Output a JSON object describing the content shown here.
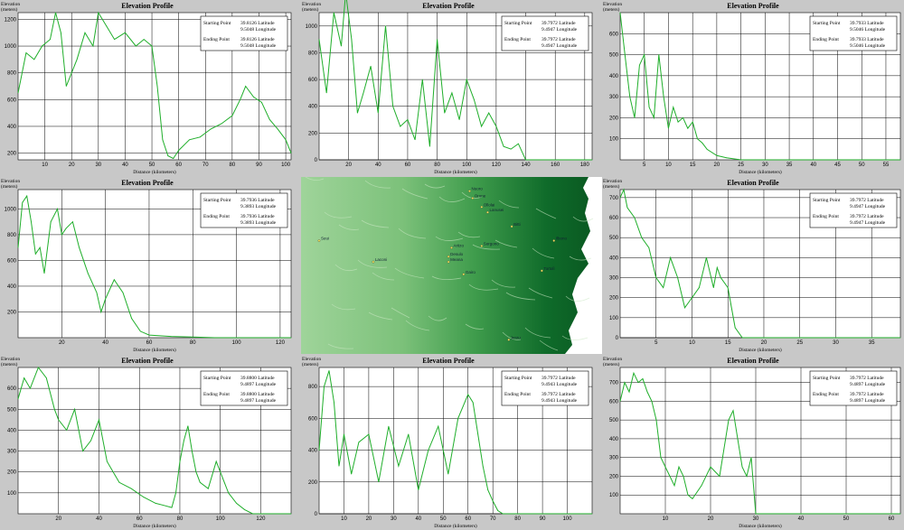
{
  "panel_title": "Elevation Profile",
  "ylabel_top": "Elevation",
  "ylabel_unit": "(meters)",
  "xlabel": "Distance (kilometers)",
  "line_color": "#1fae2a",
  "info_labels": {
    "start": "Starting Point",
    "end": "Ending Point",
    "lat": "Latitude",
    "lon": "Longitude"
  },
  "map": {
    "towns": [
      {
        "name": "Nuoro",
        "fx": 0.56,
        "fy": 0.08
      },
      {
        "name": "Ollolai",
        "fx": 0.6,
        "fy": 0.17
      },
      {
        "name": "Orune",
        "fx": 0.57,
        "fy": 0.12
      },
      {
        "name": "Lanusei",
        "fx": 0.62,
        "fy": 0.2
      },
      {
        "name": "Bitti",
        "fx": 0.7,
        "fy": 0.28
      },
      {
        "name": "Sorgono",
        "fx": 0.6,
        "fy": 0.39
      },
      {
        "name": "Ilbono",
        "fx": 0.84,
        "fy": 0.36
      },
      {
        "name": "Aritzo",
        "fx": 0.5,
        "fy": 0.4
      },
      {
        "name": "Desulo",
        "fx": 0.49,
        "fy": 0.45
      },
      {
        "name": "Seui",
        "fx": 0.06,
        "fy": 0.36
      },
      {
        "name": "Meana",
        "fx": 0.49,
        "fy": 0.48
      },
      {
        "name": "Laconi",
        "fx": 0.24,
        "fy": 0.48
      },
      {
        "name": "Gairo",
        "fx": 0.54,
        "fy": 0.55
      },
      {
        "name": "Tortolì",
        "fx": 0.8,
        "fy": 0.53
      },
      {
        "name": "Jerzu",
        "fx": 0.69,
        "fy": 0.92
      }
    ]
  },
  "chart_data": [
    {
      "type": "line",
      "title": "Elevation Profile",
      "xlabel": "Distance (kilometers)",
      "ylabel": "Elevation (meters)",
      "xlim": [
        0,
        102
      ],
      "ylim": [
        150,
        1250
      ],
      "xticks": [
        10,
        20,
        30,
        40,
        50,
        60,
        70,
        80,
        90,
        100
      ],
      "yticks": [
        200,
        400,
        600,
        800,
        1000,
        1200
      ],
      "start": {
        "lat": "39.8126",
        "lon": "9.5048"
      },
      "end": {
        "lat": "39.8126",
        "lon": "9.5048"
      },
      "x": [
        0,
        3,
        6,
        9,
        12,
        14,
        16,
        18,
        22,
        25,
        28,
        30,
        33,
        36,
        40,
        44,
        47,
        50,
        52,
        54,
        56,
        58,
        60,
        64,
        68,
        72,
        76,
        80,
        83,
        85,
        88,
        91,
        94,
        97,
        100,
        102
      ],
      "y": [
        650,
        950,
        900,
        1000,
        1050,
        1250,
        1100,
        700,
        900,
        1100,
        1000,
        1250,
        1150,
        1050,
        1100,
        1000,
        1050,
        1000,
        700,
        300,
        180,
        160,
        220,
        300,
        320,
        380,
        420,
        480,
        600,
        700,
        620,
        580,
        450,
        380,
        300,
        200
      ]
    },
    {
      "type": "line",
      "title": "Elevation Profile",
      "xlabel": "Distance (kilometers)",
      "ylabel": "Elevation (meters)",
      "xlim": [
        0,
        185
      ],
      "ylim": [
        0,
        1100
      ],
      "xticks": [
        20,
        40,
        60,
        80,
        100,
        120,
        140,
        160,
        180
      ],
      "yticks": [
        0,
        200,
        400,
        600,
        800,
        1000
      ],
      "start": {
        "lat": "39.7972",
        "lon": "9.4947"
      },
      "end": {
        "lat": "39.7972",
        "lon": "9.4947"
      },
      "x": [
        0,
        5,
        10,
        15,
        18,
        22,
        26,
        30,
        35,
        40,
        45,
        50,
        55,
        60,
        65,
        70,
        75,
        80,
        85,
        90,
        95,
        100,
        105,
        110,
        115,
        120,
        125,
        130,
        135,
        140,
        185
      ],
      "y": [
        900,
        500,
        1100,
        850,
        1250,
        900,
        350,
        500,
        700,
        350,
        1000,
        400,
        250,
        300,
        150,
        600,
        100,
        900,
        350,
        500,
        300,
        600,
        450,
        250,
        350,
        250,
        100,
        80,
        120,
        0,
        0
      ]
    },
    {
      "type": "line",
      "title": "Elevation Profile",
      "xlabel": "Distance (kilometers)",
      "ylabel": "Elevation (meters)",
      "xlim": [
        0,
        58
      ],
      "ylim": [
        0,
        700
      ],
      "xticks": [
        5,
        10,
        15,
        20,
        25,
        30,
        35,
        40,
        45,
        50,
        55
      ],
      "yticks": [
        100,
        200,
        300,
        400,
        500,
        600
      ],
      "start": {
        "lat": "39.7933",
        "lon": "9.5046"
      },
      "end": {
        "lat": "39.7933",
        "lon": "9.5046"
      },
      "x": [
        0,
        1,
        2,
        3,
        4,
        5,
        6,
        7,
        8,
        9,
        10,
        11,
        12,
        13,
        14,
        15,
        16,
        17,
        18,
        20,
        22,
        25,
        58
      ],
      "y": [
        700,
        500,
        300,
        200,
        450,
        500,
        250,
        200,
        500,
        300,
        150,
        250,
        180,
        200,
        150,
        180,
        100,
        80,
        50,
        20,
        10,
        0,
        0
      ]
    },
    {
      "type": "line",
      "title": "Elevation Profile",
      "xlabel": "Distance (kilometers)",
      "ylabel": "Elevation (meters)",
      "xlim": [
        0,
        125
      ],
      "ylim": [
        0,
        1150
      ],
      "xticks": [
        20,
        40,
        60,
        80,
        100,
        120
      ],
      "yticks": [
        200,
        400,
        600,
        800,
        1000
      ],
      "start": {
        "lat": "39.7936",
        "lon": "9.3893"
      },
      "end": {
        "lat": "39.7936",
        "lon": "9.3893"
      },
      "x": [
        0,
        2,
        4,
        6,
        8,
        10,
        12,
        15,
        18,
        20,
        22,
        25,
        28,
        32,
        36,
        38,
        40,
        44,
        48,
        52,
        56,
        60,
        70,
        80,
        90,
        125
      ],
      "y": [
        700,
        1050,
        1100,
        900,
        650,
        700,
        500,
        900,
        1000,
        800,
        850,
        900,
        700,
        500,
        350,
        200,
        300,
        450,
        350,
        150,
        50,
        20,
        10,
        5,
        0,
        0
      ]
    },
    {
      "type": "line",
      "title": "Elevation Profile",
      "xlabel": "Distance (kilometers)",
      "ylabel": "Elevation (meters)",
      "xlim": [
        0,
        39
      ],
      "ylim": [
        0,
        740
      ],
      "xticks": [
        5,
        10,
        15,
        20,
        25,
        30,
        35
      ],
      "yticks": [
        0,
        100,
        200,
        300,
        400,
        500,
        600,
        700
      ],
      "start": {
        "lat": "39.7972",
        "lon": "9.4947"
      },
      "end": {
        "lat": "39.7972",
        "lon": "9.4947"
      },
      "x": [
        0,
        0.5,
        1,
        2,
        3,
        4,
        5,
        6,
        7,
        8,
        9,
        10,
        11,
        12,
        13,
        13.5,
        14,
        15,
        16,
        17,
        39
      ],
      "y": [
        700,
        740,
        650,
        600,
        500,
        450,
        300,
        250,
        400,
        300,
        150,
        200,
        250,
        400,
        250,
        350,
        300,
        250,
        50,
        0,
        0
      ]
    },
    {
      "type": "line",
      "title": "Elevation Profile",
      "xlabel": "Distance (kilometers)",
      "ylabel": "Elevation (meters)",
      "xlim": [
        0,
        135
      ],
      "ylim": [
        0,
        700
      ],
      "xticks": [
        20,
        40,
        60,
        80,
        100,
        120
      ],
      "yticks": [
        100,
        200,
        300,
        400,
        500,
        600
      ],
      "start": {
        "lat": "39.8800",
        "lon": "9.4897"
      },
      "end": {
        "lat": "39.8800",
        "lon": "9.4897"
      },
      "x": [
        0,
        3,
        6,
        10,
        14,
        18,
        20,
        24,
        28,
        32,
        36,
        40,
        44,
        50,
        56,
        62,
        68,
        72,
        76,
        78,
        80,
        82,
        84,
        86,
        88,
        90,
        94,
        98,
        102,
        104,
        108,
        112,
        116,
        135
      ],
      "y": [
        550,
        650,
        600,
        700,
        650,
        500,
        450,
        400,
        500,
        300,
        350,
        450,
        250,
        150,
        120,
        80,
        50,
        40,
        30,
        100,
        250,
        350,
        420,
        300,
        200,
        150,
        120,
        250,
        150,
        100,
        50,
        20,
        0,
        0
      ]
    },
    {
      "type": "line",
      "title": "Elevation Profile",
      "xlabel": "Distance (kilometers)",
      "ylabel": "Elevation (meters)",
      "xlim": [
        0,
        110
      ],
      "ylim": [
        0,
        920
      ],
      "xticks": [
        10,
        20,
        30,
        40,
        50,
        60,
        70,
        80,
        90,
        100
      ],
      "yticks": [
        0,
        200,
        400,
        600,
        800
      ],
      "start": {
        "lat": "39.7972",
        "lon": "9.4943"
      },
      "end": {
        "lat": "39.7972",
        "lon": "9.4943"
      },
      "x": [
        0,
        2,
        4,
        6,
        8,
        10,
        13,
        16,
        20,
        24,
        28,
        32,
        36,
        40,
        44,
        48,
        52,
        56,
        60,
        62,
        64,
        66,
        68,
        70,
        72,
        74,
        110
      ],
      "y": [
        400,
        800,
        900,
        700,
        300,
        500,
        250,
        450,
        500,
        200,
        550,
        300,
        500,
        150,
        400,
        550,
        250,
        600,
        750,
        700,
        500,
        300,
        150,
        80,
        20,
        0,
        0
      ]
    },
    {
      "type": "line",
      "title": "Elevation Profile",
      "xlabel": "Distance (kilometers)",
      "ylabel": "Elevation (meters)",
      "xlim": [
        0,
        62
      ],
      "ylim": [
        0,
        780
      ],
      "xticks": [
        10,
        20,
        30,
        40,
        50,
        60
      ],
      "yticks": [
        100,
        200,
        300,
        400,
        500,
        600,
        700
      ],
      "start": {
        "lat": "39.7972",
        "lon": "9.4897"
      },
      "end": {
        "lat": "39.7972",
        "lon": "9.4897"
      },
      "x": [
        0,
        1,
        2,
        3,
        4,
        5,
        6,
        7,
        8,
        9,
        10,
        11,
        12,
        13,
        14,
        15,
        16,
        18,
        20,
        22,
        23,
        24,
        25,
        26,
        27,
        28,
        29,
        30,
        62
      ],
      "y": [
        600,
        700,
        650,
        750,
        700,
        720,
        650,
        600,
        500,
        300,
        250,
        200,
        150,
        250,
        200,
        100,
        80,
        150,
        250,
        200,
        350,
        500,
        550,
        400,
        250,
        200,
        300,
        0,
        0
      ]
    }
  ]
}
